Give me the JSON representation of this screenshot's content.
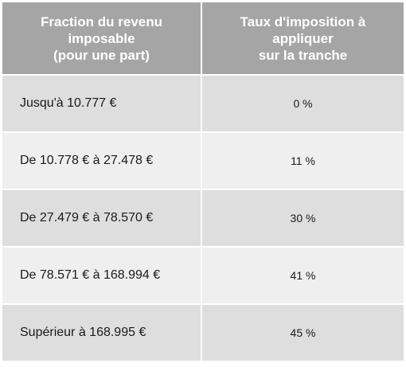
{
  "table": {
    "headers": {
      "bracket": [
        "Fraction du revenu",
        "imposable",
        "(pour une part)"
      ],
      "rate": [
        "Taux d'imposition à",
        "appliquer",
        "sur la tranche"
      ]
    },
    "rows": [
      {
        "bracket": "Jusqu'à 10.777 €",
        "rate": "0 %"
      },
      {
        "bracket": "De 10.778 € à 27.478 €",
        "rate": "11 %"
      },
      {
        "bracket": "De 27.479 € à 78.570 €",
        "rate": "30 %"
      },
      {
        "bracket": "De 78.571 € à 168.994 €",
        "rate": "41 %"
      },
      {
        "bracket": "Supérieur à 168.995 €",
        "rate": "45 %"
      }
    ]
  },
  "colors": {
    "header_bg": "#a5a5a5",
    "row_dark": "#dedede",
    "row_light": "#efefef"
  }
}
